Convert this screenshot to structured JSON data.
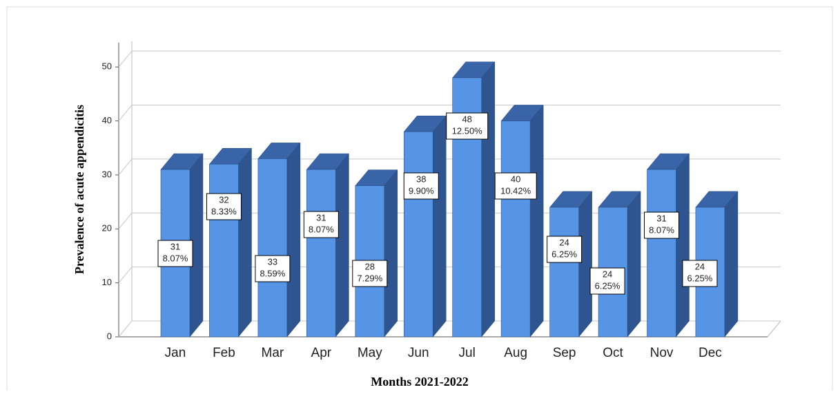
{
  "chart_data": {
    "type": "bar3d",
    "y_label": "Prevalence of acute appendicitis",
    "x_label": "Months 2021-2022",
    "categories": [
      "Jan",
      "Feb",
      "Mar",
      "Apr",
      "May",
      "Jun",
      "Jul",
      "Aug",
      "Sep",
      "Oct",
      "Nov",
      "Dec"
    ],
    "values": [
      31,
      32,
      33,
      31,
      28,
      38,
      48,
      40,
      24,
      24,
      31,
      24
    ],
    "percentages": [
      8.07,
      8.33,
      8.59,
      8.07,
      7.29,
      9.9,
      12.5,
      10.42,
      6.25,
      6.25,
      8.07,
      6.25
    ],
    "percentage_labels": [
      "8.07%",
      "8.33%",
      "8.59%",
      "8.07%",
      "7.29%",
      "9.90%",
      "12.50%",
      "10.42%",
      "6.25%",
      "6.25%",
      "8.07%",
      "6.25%"
    ],
    "color": "#5694e6",
    "ylim": [
      0,
      55
    ],
    "yticks": [
      0,
      10,
      20,
      30,
      40,
      50
    ],
    "grid": true
  }
}
